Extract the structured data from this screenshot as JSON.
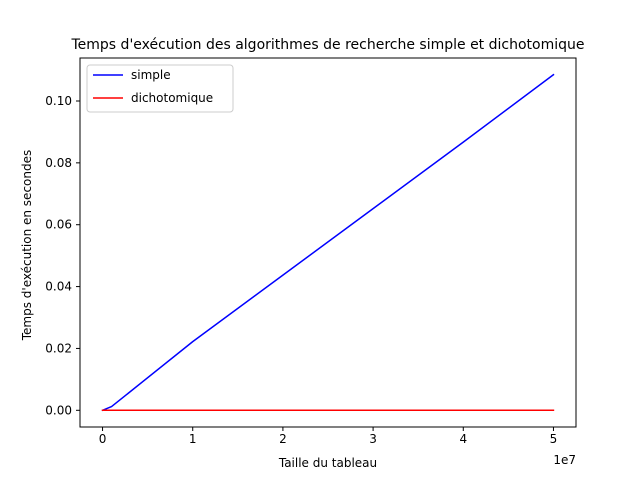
{
  "chart_data": {
    "type": "line",
    "title": "Temps d'exécution des algorithmes de recherche simple et dichotomique",
    "xlabel": "Taille du tableau",
    "ylabel": "Temps d'exécution en secondes",
    "x_offset_text": "1e7",
    "x_scale": 10000000,
    "xlim": [
      -2500000,
      52500000
    ],
    "ylim": [
      -0.0054,
      0.1139
    ],
    "x_ticks": [
      0,
      10000000,
      20000000,
      30000000,
      40000000,
      50000000
    ],
    "x_tick_labels": [
      "0",
      "1",
      "2",
      "3",
      "4",
      "5"
    ],
    "y_ticks": [
      0.0,
      0.02,
      0.04,
      0.06,
      0.08,
      0.1
    ],
    "y_tick_labels": [
      "0.00",
      "0.02",
      "0.04",
      "0.06",
      "0.08",
      "0.10"
    ],
    "grid": false,
    "legend_position": "top-left",
    "series": [
      {
        "name": "simple",
        "color": "#0000ff",
        "x": [
          0,
          1000000,
          10000000,
          20000000,
          30000000,
          40000000,
          50000000
        ],
        "y": [
          0.0,
          0.0012,
          0.0222,
          0.0437,
          0.0652,
          0.0867,
          0.1085
        ]
      },
      {
        "name": "dichotomique",
        "color": "#ff0000",
        "x": [
          0,
          1000000,
          10000000,
          20000000,
          30000000,
          40000000,
          50000000
        ],
        "y": [
          0.0,
          0.0,
          0.0,
          0.0,
          0.0,
          0.0,
          0.0
        ]
      }
    ]
  }
}
